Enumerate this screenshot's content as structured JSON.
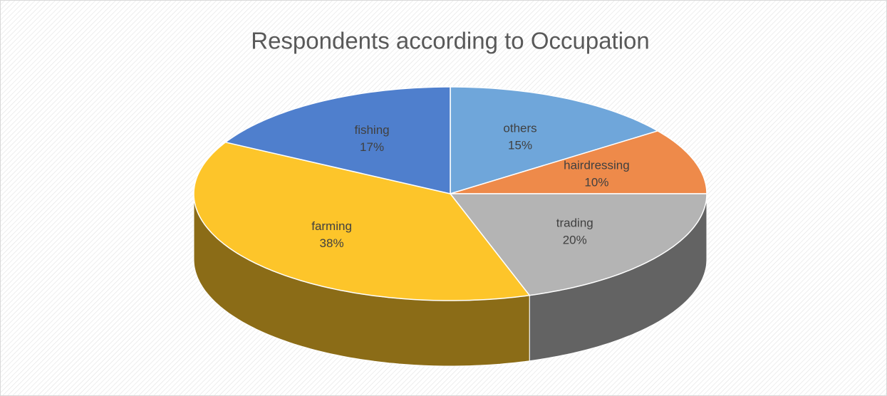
{
  "chart_data": {
    "type": "pie",
    "title": "Respondents according to Occupation",
    "categories": [
      "others",
      "hairdressing",
      "trading",
      "farming",
      "fishing"
    ],
    "values": [
      15,
      10,
      20,
      38,
      17
    ],
    "value_labels": [
      "15%",
      "10%",
      "20%",
      "38%",
      "17%"
    ],
    "colors": [
      "#6fa6da",
      "#ee8a4a",
      "#b4b4b4",
      "#fdc52a",
      "#4f7fcd"
    ]
  }
}
